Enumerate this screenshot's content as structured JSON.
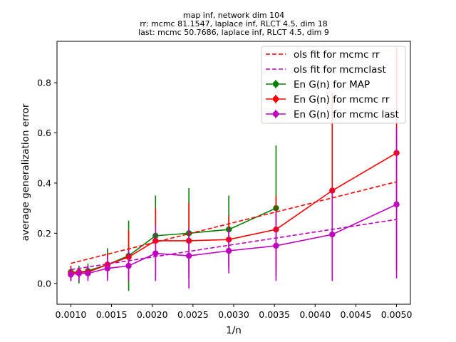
{
  "chart_data": {
    "type": "line",
    "title_lines": [
      "map inf, network dim 104",
      "rr: mcmc 81.1547, laplace inf, RLCT 4.5, dim 18",
      "last: mcmc 50.7686, laplace inf, RLCT 4.5, dim 9"
    ],
    "xlabel": "1/n",
    "ylabel": "average generalization error",
    "xlim": [
      0.00083,
      0.00517
    ],
    "ylim": [
      -0.083,
      0.965
    ],
    "xticks": [
      0.001,
      0.0015,
      0.002,
      0.0025,
      0.003,
      0.0035,
      0.004,
      0.0045,
      0.005
    ],
    "xtick_labels": [
      "0.0010",
      "0.0015",
      "0.0020",
      "0.0025",
      "0.0030",
      "0.0035",
      "0.0040",
      "0.0045",
      "0.0050"
    ],
    "yticks": [
      0.0,
      0.2,
      0.4,
      0.6,
      0.8
    ],
    "ytick_labels": [
      "0.0",
      "0.2",
      "0.4",
      "0.6",
      "0.8"
    ],
    "grid": false,
    "legend_position": "top-right",
    "x": [
      0.001,
      0.0011,
      0.00121,
      0.00145,
      0.00171,
      0.00204,
      0.00245,
      0.00294,
      0.00352,
      0.00421,
      0.005
    ],
    "series": [
      {
        "name": "En G(n) for MAP",
        "kind": "errorbar",
        "color": "#008000",
        "values": [
          0.045,
          0.045,
          0.05,
          0.075,
          0.11,
          0.19,
          0.2,
          0.215,
          0.3,
          null,
          null
        ],
        "err_low": [
          0.01,
          0.0,
          0.02,
          0.02,
          -0.03,
          0.01,
          0.02,
          0.06,
          0.03,
          null,
          null
        ],
        "err_high": [
          0.07,
          0.07,
          0.08,
          0.14,
          0.25,
          0.35,
          0.38,
          0.35,
          0.55,
          null,
          null
        ]
      },
      {
        "name": "En G(n) for mcmc rr",
        "kind": "errorbar",
        "color": "#ff0000",
        "values": [
          0.04,
          0.045,
          0.045,
          0.075,
          0.105,
          0.17,
          0.17,
          0.175,
          0.215,
          0.37,
          0.52
        ],
        "err_low": [
          0.01,
          0.02,
          0.02,
          0.03,
          0.02,
          0.03,
          0.04,
          0.07,
          0.05,
          0.01,
          0.05
        ],
        "err_high": [
          0.07,
          0.06,
          0.07,
          0.12,
          0.21,
          0.3,
          0.32,
          0.27,
          0.35,
          0.76,
          0.94
        ]
      },
      {
        "name": "En G(n) for mcmc last",
        "kind": "errorbar",
        "color": "#bf00bf",
        "values": [
          0.035,
          0.04,
          0.04,
          0.06,
          0.07,
          0.12,
          0.11,
          0.13,
          0.15,
          0.195,
          0.315
        ],
        "err_low": [
          0.01,
          0.01,
          0.01,
          0.01,
          0.01,
          0.01,
          -0.02,
          0.04,
          0.01,
          0.01,
          0.02
        ],
        "err_high": [
          0.06,
          0.06,
          0.07,
          0.11,
          0.14,
          0.23,
          0.22,
          0.22,
          0.29,
          0.38,
          0.62
        ]
      },
      {
        "name": "ols fit for mcmc rr",
        "kind": "dashed",
        "color": "#ff0000",
        "x": [
          0.001,
          0.005
        ],
        "values": [
          0.08,
          0.405
        ]
      },
      {
        "name": "ols fit for mcmclast",
        "kind": "dashed",
        "color": "#bf00bf",
        "x": [
          0.001,
          0.005
        ],
        "values": [
          0.055,
          0.255
        ]
      }
    ],
    "legend_order": [
      "ols fit for mcmc rr",
      "ols fit for mcmclast",
      "En G(n) for MAP",
      "En G(n) for mcmc rr",
      "En G(n) for mcmc last"
    ]
  }
}
